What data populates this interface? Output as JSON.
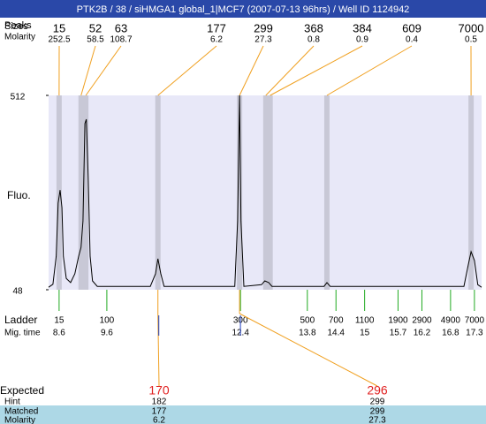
{
  "title": "PTK2B / 38 / siHMGA1 global_1|MCF7 (2007-07-13 96hrs) / Well ID 1124942",
  "labels": {
    "peaks": "Peaks",
    "sizes": "Sizes",
    "molarity": "Molarity",
    "fluo": "Fluo.",
    "ladder": "Ladder",
    "mig_time": "Mig. time",
    "expected": "Expected",
    "hint": "Hint",
    "matched": "Matched",
    "matched_molarity": "Molarity"
  },
  "ylim": [
    48,
    512
  ],
  "yticks": [
    48,
    512
  ],
  "xlim": [
    8.38,
    17.45
  ],
  "peaks": {
    "sizes": [
      15,
      52,
      63,
      177,
      299,
      368,
      384,
      609,
      7000
    ],
    "molarity": [
      252.5,
      58.5,
      108.7,
      6.2,
      27.3,
      0.8,
      0.9,
      0.4,
      0.5
    ],
    "mig_time": [
      8.6,
      9.06,
      9.16,
      10.67,
      12.38,
      12.93,
      13.02,
      14.21,
      17.23
    ]
  },
  "ladder": {
    "sizes": [
      15,
      100,
      300,
      500,
      700,
      1100,
      1900,
      2900,
      4900,
      7000
    ],
    "mig_time": [
      8.6,
      9.6,
      12.4,
      13.8,
      14.4,
      15,
      15.7,
      16.2,
      16.8,
      17.3
    ]
  },
  "trace": {
    "x": [
      8.38,
      8.47,
      8.54,
      8.58,
      8.62,
      8.66,
      8.69,
      8.75,
      8.84,
      8.93,
      9.01,
      9.06,
      9.1,
      9.14,
      9.17,
      9.21,
      9.25,
      9.3,
      9.4,
      10.51,
      10.62,
      10.67,
      10.73,
      10.8,
      12.28,
      12.34,
      12.38,
      12.41,
      12.47,
      12.84,
      12.91,
      12.99,
      13.06,
      14.15,
      14.21,
      14.28,
      17.08,
      17.17,
      17.23,
      17.3,
      17.37,
      17.45
    ],
    "y": [
      54,
      61,
      128,
      255,
      286,
      244,
      128,
      75,
      65,
      86,
      128,
      149,
      212,
      445,
      455,
      318,
      128,
      69,
      56,
      56,
      86,
      122,
      86,
      56,
      56,
      212,
      512,
      212,
      56,
      60,
      69,
      65,
      56,
      56,
      65,
      56,
      56,
      107,
      139,
      118,
      60,
      54
    ]
  },
  "expected": [
    {
      "expected": 170,
      "hint": 182,
      "matched": 177,
      "molarity": 6.2
    },
    {
      "expected": 296,
      "hint": 299,
      "matched": 299,
      "molarity": 27.3
    }
  ]
}
